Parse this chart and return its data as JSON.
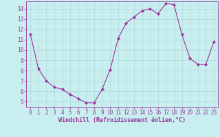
{
  "x": [
    0,
    1,
    2,
    3,
    4,
    5,
    6,
    7,
    8,
    9,
    10,
    11,
    12,
    13,
    14,
    15,
    16,
    17,
    18,
    19,
    20,
    21,
    22,
    23
  ],
  "y": [
    11.5,
    8.2,
    7.0,
    6.4,
    6.2,
    5.7,
    5.3,
    4.9,
    4.9,
    6.2,
    8.1,
    11.1,
    12.6,
    13.2,
    13.8,
    14.0,
    13.5,
    14.5,
    14.4,
    11.5,
    9.2,
    8.6,
    8.6,
    10.8
  ],
  "line_color": "#993399",
  "marker": "D",
  "marker_size": 2,
  "bg_color": "#c8eef0",
  "grid_color": "#b0d8d8",
  "xlabel": "Windchill (Refroidissement éolien,°C)",
  "xlim": [
    -0.5,
    23.5
  ],
  "ylim": [
    4.5,
    14.7
  ],
  "yticks": [
    5,
    6,
    7,
    8,
    9,
    10,
    11,
    12,
    13,
    14
  ],
  "xticks": [
    0,
    1,
    2,
    3,
    4,
    5,
    6,
    7,
    8,
    9,
    10,
    11,
    12,
    13,
    14,
    15,
    16,
    17,
    18,
    19,
    20,
    21,
    22,
    23
  ],
  "tick_color": "#993399",
  "label_color": "#993399",
  "tick_fontsize": 5.5,
  "xlabel_fontsize": 6.0
}
